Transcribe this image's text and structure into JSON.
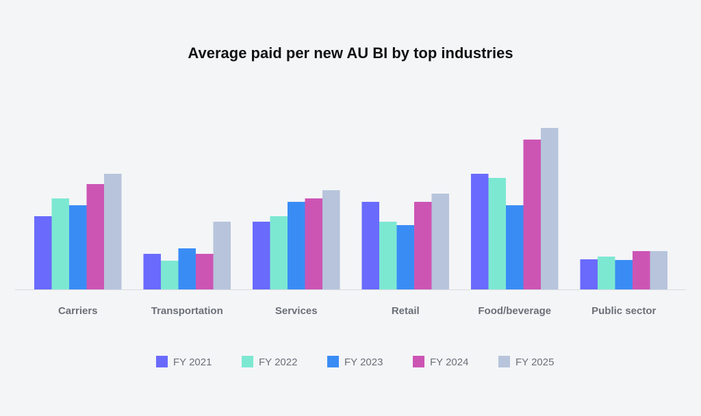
{
  "chart_data": {
    "type": "bar",
    "title": "Average paid per new AU BI by top industries",
    "xlabel": "",
    "ylabel": "",
    "units_note": "No y-axis shown; values are relative bar heights",
    "ylim": [
      0,
      250
    ],
    "grid": false,
    "legend_position": "bottom",
    "categories": [
      "Carriers",
      "Transportation",
      "Services",
      "Retail",
      "Food/beverage",
      "Public sector"
    ],
    "series": [
      {
        "name": "FY 2021",
        "color": "#6a6afd",
        "values": [
          107,
          52,
          99,
          128,
          169,
          44
        ]
      },
      {
        "name": "FY 2022",
        "color": "#7de8d2",
        "values": [
          133,
          42,
          107,
          99,
          163,
          48
        ]
      },
      {
        "name": "FY 2023",
        "color": "#3a8cf5",
        "values": [
          123,
          60,
          128,
          94,
          123,
          43
        ]
      },
      {
        "name": "FY 2024",
        "color": "#cc55b4",
        "values": [
          154,
          52,
          133,
          128,
          219,
          56
        ]
      },
      {
        "name": "FY 2025",
        "color": "#b7c4db",
        "values": [
          169,
          99,
          145,
          140,
          236,
          56
        ]
      }
    ]
  }
}
